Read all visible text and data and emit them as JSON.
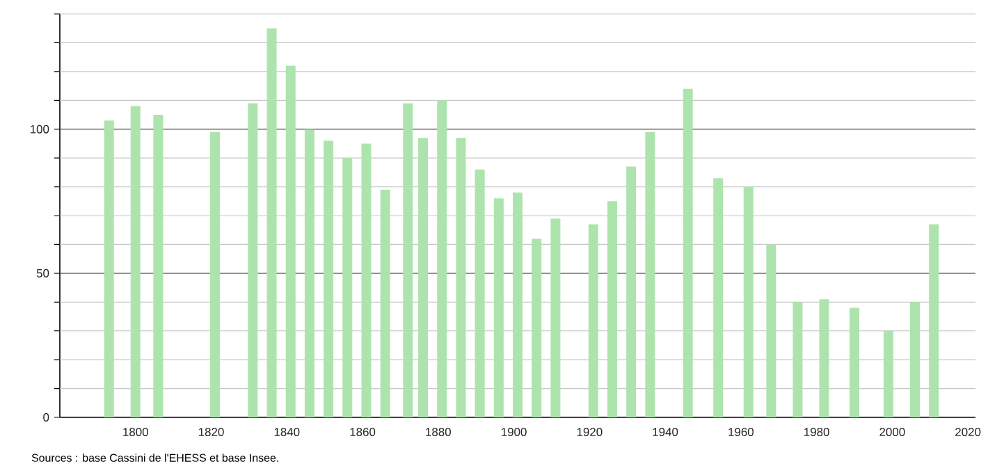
{
  "chart_data": {
    "type": "bar",
    "x": [
      1793,
      1800,
      1806,
      1821,
      1831,
      1836,
      1841,
      1846,
      1851,
      1856,
      1861,
      1866,
      1872,
      1876,
      1881,
      1886,
      1891,
      1896,
      1901,
      1906,
      1911,
      1921,
      1926,
      1931,
      1936,
      1946,
      1954,
      1962,
      1968,
      1975,
      1982,
      1990,
      1999,
      2006,
      2011
    ],
    "values": [
      103,
      108,
      105,
      99,
      109,
      135,
      122,
      100,
      96,
      90,
      95,
      79,
      109,
      97,
      110,
      97,
      86,
      76,
      78,
      62,
      69,
      67,
      75,
      87,
      99,
      114,
      83,
      80,
      60,
      40,
      41,
      38,
      30,
      40,
      67
    ],
    "color": "#ade4ad",
    "xlim": [
      1780,
      2022
    ],
    "xticks": [
      1800,
      1820,
      1840,
      1860,
      1880,
      1900,
      1920,
      1940,
      1960,
      1980,
      2000,
      2020
    ],
    "ylim": [
      0,
      140
    ],
    "yticks": [
      0,
      {
        "value": 10,
        "label": null
      },
      {
        "value": 20,
        "label": null
      },
      {
        "value": 30,
        "label": null
      },
      {
        "value": 40,
        "label": null
      },
      50,
      {
        "value": 60,
        "label": null
      },
      {
        "value": 70,
        "label": null
      },
      {
        "value": 80,
        "label": null
      },
      {
        "value": 90,
        "label": null
      },
      100,
      {
        "value": 110,
        "label": null
      },
      {
        "value": 120,
        "label": null
      },
      {
        "value": 130,
        "label": null
      },
      {
        "value": 140,
        "label": null
      }
    ],
    "grid": "y",
    "annotations": [
      "Sources : base Cassini de l'EHESS et base Insee."
    ]
  }
}
